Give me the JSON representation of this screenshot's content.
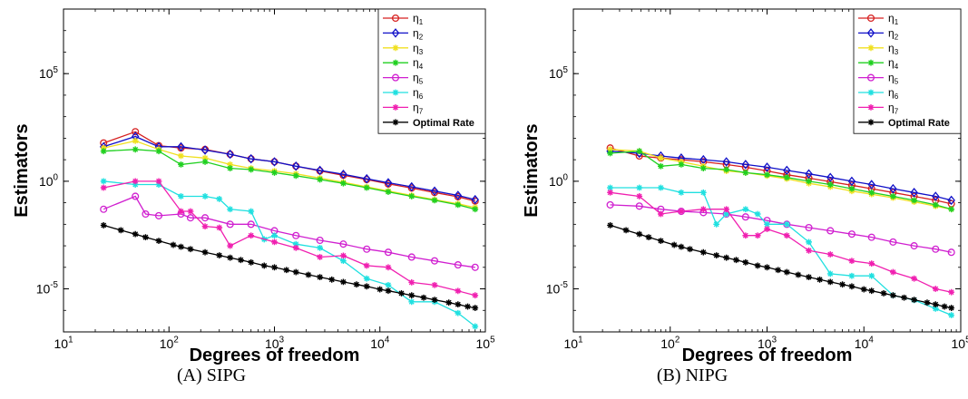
{
  "figure": {
    "captions": [
      "(A) SIPG",
      "(B) NIPG"
    ]
  },
  "chart_data": [
    {
      "type": "line",
      "title": "",
      "caption": "(A) SIPG",
      "xlabel": "Degrees of freedom",
      "ylabel": "Estimators",
      "xscale": "log",
      "yscale": "log",
      "xlim": [
        10,
        100000
      ],
      "ylim": [
        1e-07,
        100000000.0
      ],
      "x_ticks": [
        10,
        100,
        1000,
        10000,
        100000
      ],
      "x_tick_labels": [
        "10^1",
        "10^2",
        "10^3",
        "10^4",
        "10^5"
      ],
      "y_ticks": [
        1e-05,
        1,
        100000
      ],
      "y_tick_labels": [
        "10^-5",
        "10^0",
        "10^5"
      ],
      "legend": "top-right",
      "grid": false,
      "series": [
        {
          "name": "η1",
          "color": "#d62020",
          "marker": "circle",
          "x": [
            24,
            48,
            80,
            130,
            220,
            380,
            600,
            1000,
            1600,
            2700,
            4500,
            7500,
            12000,
            20000,
            33000,
            55000,
            80000
          ],
          "y": [
            60,
            200,
            45,
            35,
            30,
            18,
            11,
            8,
            5,
            3,
            1.9,
            1.2,
            0.75,
            0.48,
            0.3,
            0.19,
            0.12
          ]
        },
        {
          "name": "η2",
          "color": "#1010c8",
          "marker": "diamond",
          "x": [
            24,
            48,
            80,
            130,
            220,
            380,
            600,
            1000,
            1600,
            2700,
            4500,
            7500,
            12000,
            20000,
            33000,
            55000,
            80000
          ],
          "y": [
            40,
            120,
            40,
            40,
            28,
            18,
            11,
            8,
            5,
            3.2,
            2.1,
            1.3,
            0.85,
            0.55,
            0.35,
            0.22,
            0.14
          ]
        },
        {
          "name": "η3",
          "color": "#f0e020",
          "marker": "star",
          "x": [
            24,
            48,
            80,
            130,
            220,
            380,
            600,
            1000,
            1600,
            2700,
            4500,
            7500,
            12000,
            20000,
            33000,
            55000,
            80000
          ],
          "y": [
            35,
            75,
            30,
            15,
            12,
            6,
            4,
            3,
            2.2,
            1.4,
            0.9,
            0.55,
            0.35,
            0.22,
            0.14,
            0.09,
            0.06
          ]
        },
        {
          "name": "η4",
          "color": "#20d020",
          "marker": "star",
          "x": [
            24,
            48,
            80,
            130,
            220,
            380,
            600,
            1000,
            1600,
            2700,
            4500,
            7500,
            12000,
            20000,
            33000,
            55000,
            80000
          ],
          "y": [
            25,
            30,
            25,
            6,
            8,
            4,
            3.5,
            2.5,
            1.8,
            1.2,
            0.8,
            0.5,
            0.32,
            0.2,
            0.13,
            0.08,
            0.05
          ]
        },
        {
          "name": "η5",
          "color": "#d020d0",
          "marker": "circle",
          "x": [
            24,
            48,
            60,
            80,
            130,
            160,
            220,
            380,
            600,
            1000,
            1600,
            2700,
            4500,
            7500,
            12000,
            20000,
            33000,
            55000,
            80000
          ],
          "y": [
            0.05,
            0.2,
            0.03,
            0.025,
            0.03,
            0.02,
            0.02,
            0.01,
            0.01,
            0.005,
            0.003,
            0.0018,
            0.0012,
            0.0007,
            0.0005,
            0.0003,
            0.0002,
            0.00013,
            0.0001
          ]
        },
        {
          "name": "η6",
          "color": "#20e0e0",
          "marker": "star",
          "x": [
            24,
            48,
            80,
            130,
            220,
            300,
            380,
            600,
            800,
            1000,
            1600,
            2700,
            4500,
            7500,
            12000,
            20000,
            33000,
            55000,
            80000
          ],
          "y": [
            1,
            0.7,
            0.7,
            0.2,
            0.2,
            0.15,
            0.05,
            0.04,
            0.002,
            0.003,
            0.0012,
            0.0008,
            0.0002,
            3e-05,
            1.5e-05,
            2.5e-06,
            2.5e-06,
            7.5e-07,
            1.8e-07
          ]
        },
        {
          "name": "η7",
          "color": "#f020b0",
          "marker": "star",
          "x": [
            24,
            48,
            80,
            130,
            160,
            220,
            300,
            380,
            600,
            1000,
            1600,
            2700,
            4500,
            7500,
            12000,
            20000,
            33000,
            55000,
            80000
          ],
          "y": [
            0.5,
            1,
            1,
            0.04,
            0.04,
            0.008,
            0.007,
            0.001,
            0.003,
            0.0015,
            0.0008,
            0.0003,
            0.00035,
            0.00012,
            0.0001,
            2e-05,
            1.5e-05,
            8e-06,
            5e-06
          ]
        },
        {
          "name": "Optimal Rate",
          "color": "#000000",
          "marker": "star",
          "x": [
            24,
            35,
            48,
            60,
            80,
            110,
            130,
            160,
            220,
            300,
            380,
            480,
            600,
            800,
            1000,
            1300,
            1600,
            2100,
            2700,
            3500,
            4500,
            6000,
            7500,
            10000,
            12000,
            16000,
            20000,
            26000,
            33000,
            45000,
            55000,
            68000,
            80000
          ],
          "y": [
            0.009,
            0.0053,
            0.0035,
            0.0025,
            0.0017,
            0.0011,
            0.0009,
            0.0007,
            0.0005,
            0.00036,
            0.00028,
            0.00022,
            0.00017,
            0.00012,
            0.0001,
            7.5e-05,
            6e-05,
            4.5e-05,
            3.5e-05,
            2.7e-05,
            2.1e-05,
            1.6e-05,
            1.3e-05,
            9.5e-06,
            8.1e-06,
            6.2e-06,
            5e-06,
            3.9e-06,
            3.1e-06,
            2.3e-06,
            1.9e-06,
            1.5e-06,
            1.3e-06
          ]
        }
      ]
    },
    {
      "type": "line",
      "title": "",
      "caption": "(B) NIPG",
      "xlabel": "Degrees of freedom",
      "ylabel": "Estimators",
      "xscale": "log",
      "yscale": "log",
      "xlim": [
        10,
        100000
      ],
      "ylim": [
        1e-07,
        100000000.0
      ],
      "x_ticks": [
        10,
        100,
        1000,
        10000,
        100000
      ],
      "x_tick_labels": [
        "10^1",
        "10^2",
        "10^3",
        "10^4",
        "10^5"
      ],
      "y_ticks": [
        1e-05,
        1,
        100000
      ],
      "y_tick_labels": [
        "10^-5",
        "10^0",
        "10^5"
      ],
      "legend": "top-right",
      "grid": false,
      "series": [
        {
          "name": "η1",
          "color": "#d62020",
          "marker": "circle",
          "x": [
            24,
            48,
            80,
            130,
            220,
            380,
            600,
            1000,
            1600,
            2700,
            4500,
            7500,
            12000,
            20000,
            33000,
            55000,
            80000
          ],
          "y": [
            35,
            15,
            12,
            10,
            8,
            6,
            4.5,
            3,
            2,
            1.4,
            0.95,
            0.65,
            0.45,
            0.3,
            0.2,
            0.13,
            0.09
          ]
        },
        {
          "name": "η2",
          "color": "#1010c8",
          "marker": "diamond",
          "x": [
            24,
            48,
            80,
            130,
            220,
            380,
            600,
            1000,
            1600,
            2700,
            4500,
            7500,
            12000,
            20000,
            33000,
            55000,
            80000
          ],
          "y": [
            25,
            20,
            15,
            12,
            10,
            8,
            6,
            4.5,
            3.2,
            2.2,
            1.5,
            1,
            0.7,
            0.45,
            0.3,
            0.2,
            0.13
          ]
        },
        {
          "name": "η3",
          "color": "#f0e020",
          "marker": "star",
          "x": [
            24,
            48,
            80,
            130,
            220,
            380,
            600,
            1000,
            1600,
            2700,
            4500,
            7500,
            12000,
            20000,
            33000,
            55000,
            80000
          ],
          "y": [
            30,
            25,
            12,
            8,
            5,
            3,
            2.5,
            1.8,
            1.3,
            0.8,
            0.55,
            0.35,
            0.25,
            0.17,
            0.11,
            0.07,
            0.05
          ]
        },
        {
          "name": "η4",
          "color": "#20d020",
          "marker": "star",
          "x": [
            24,
            48,
            80,
            130,
            220,
            380,
            600,
            1000,
            1600,
            2700,
            4500,
            7500,
            12000,
            20000,
            33000,
            55000,
            80000
          ],
          "y": [
            20,
            25,
            5,
            6,
            4,
            3.5,
            2.5,
            2,
            1.5,
            1,
            0.7,
            0.45,
            0.3,
            0.2,
            0.13,
            0.08,
            0.05
          ]
        },
        {
          "name": "η5",
          "color": "#d020d0",
          "marker": "circle",
          "x": [
            24,
            48,
            80,
            130,
            220,
            380,
            600,
            1000,
            1600,
            2700,
            4500,
            7500,
            12000,
            20000,
            33000,
            55000,
            80000
          ],
          "y": [
            0.08,
            0.07,
            0.05,
            0.04,
            0.035,
            0.03,
            0.022,
            0.015,
            0.01,
            0.007,
            0.005,
            0.0035,
            0.0025,
            0.0015,
            0.001,
            0.0007,
            0.0005
          ]
        },
        {
          "name": "η6",
          "color": "#20e0e0",
          "marker": "star",
          "x": [
            24,
            48,
            80,
            130,
            220,
            300,
            380,
            600,
            800,
            1000,
            1600,
            2700,
            4500,
            7500,
            12000,
            20000,
            33000,
            55000,
            80000
          ],
          "y": [
            0.5,
            0.5,
            0.5,
            0.3,
            0.3,
            0.01,
            0.03,
            0.05,
            0.03,
            0.01,
            0.01,
            0.0015,
            5e-05,
            4e-05,
            4e-05,
            5e-06,
            3e-06,
            1.2e-06,
            6e-07
          ]
        },
        {
          "name": "η7",
          "color": "#f020b0",
          "marker": "star",
          "x": [
            24,
            48,
            80,
            130,
            220,
            380,
            600,
            800,
            1000,
            1600,
            2700,
            4500,
            7500,
            12000,
            20000,
            33000,
            55000,
            80000
          ],
          "y": [
            0.3,
            0.2,
            0.03,
            0.04,
            0.05,
            0.05,
            0.003,
            0.003,
            0.006,
            0.003,
            0.0006,
            0.0004,
            0.0002,
            0.00015,
            6e-05,
            3e-05,
            1e-05,
            7e-06
          ]
        },
        {
          "name": "Optimal Rate",
          "color": "#000000",
          "marker": "star",
          "x": [
            24,
            35,
            48,
            60,
            80,
            110,
            130,
            160,
            220,
            300,
            380,
            480,
            600,
            800,
            1000,
            1300,
            1600,
            2100,
            2700,
            3500,
            4500,
            6000,
            7500,
            10000,
            12000,
            16000,
            20000,
            26000,
            33000,
            45000,
            55000,
            68000,
            80000
          ],
          "y": [
            0.009,
            0.0053,
            0.0035,
            0.0025,
            0.0017,
            0.0011,
            0.0009,
            0.0007,
            0.0005,
            0.00036,
            0.00028,
            0.00022,
            0.00017,
            0.00012,
            0.0001,
            7.5e-05,
            6e-05,
            4.5e-05,
            3.5e-05,
            2.7e-05,
            2.1e-05,
            1.6e-05,
            1.3e-05,
            9.5e-06,
            8.1e-06,
            6.2e-06,
            5e-06,
            3.9e-06,
            3.1e-06,
            2.3e-06,
            1.9e-06,
            1.5e-06,
            1.3e-06
          ]
        }
      ]
    }
  ]
}
